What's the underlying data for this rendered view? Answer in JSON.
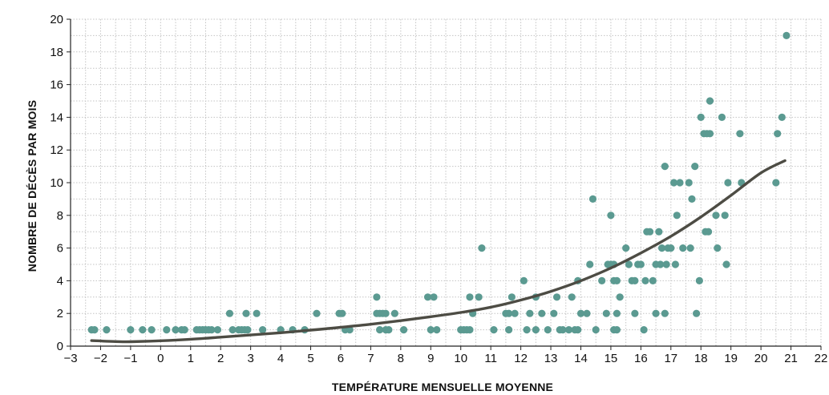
{
  "chart_data": {
    "type": "scatter",
    "title": "",
    "xlabel": "TEMPÉRATURE MENSUELLE MOYENNE",
    "ylabel": "NOMBRE DE DÉCÈS PAR MOIS",
    "xlim": [
      -3,
      22
    ],
    "ylim": [
      0,
      20
    ],
    "x_ticks": [
      -3,
      -2,
      -1,
      0,
      1,
      2,
      3,
      4,
      5,
      6,
      7,
      8,
      9,
      10,
      11,
      12,
      13,
      14,
      15,
      16,
      17,
      18,
      19,
      20,
      21,
      22
    ],
    "y_ticks": [
      0,
      2,
      4,
      6,
      8,
      10,
      12,
      14,
      16,
      18,
      20
    ],
    "x_minor_step": 0.5,
    "y_minor_step": 1,
    "grid": "dotted",
    "colors": {
      "points": "#5b9a91",
      "trend": "#4d4c44",
      "grid": "#c4c4c4",
      "axis": "#222222"
    },
    "trend_curve": {
      "type": "fitted-curve",
      "points": [
        [
          -2.3,
          0.34
        ],
        [
          -1.5,
          0.28
        ],
        [
          -1,
          0.27
        ],
        [
          0,
          0.33
        ],
        [
          1,
          0.42
        ],
        [
          2,
          0.55
        ],
        [
          3,
          0.68
        ],
        [
          4,
          0.82
        ],
        [
          5,
          0.98
        ],
        [
          6,
          1.15
        ],
        [
          7,
          1.34
        ],
        [
          8,
          1.56
        ],
        [
          9,
          1.8
        ],
        [
          10,
          2.06
        ],
        [
          11,
          2.38
        ],
        [
          12,
          2.82
        ],
        [
          13,
          3.35
        ],
        [
          14,
          4.0
        ],
        [
          15,
          4.78
        ],
        [
          16,
          5.7
        ],
        [
          17,
          6.72
        ],
        [
          18,
          7.9
        ],
        [
          19,
          9.22
        ],
        [
          20,
          10.6
        ],
        [
          20.8,
          11.35
        ]
      ]
    },
    "series": [
      {
        "points": [
          [
            -2.3,
            1
          ],
          [
            -2.2,
            1
          ],
          [
            -1.8,
            1
          ],
          [
            -1.0,
            1
          ],
          [
            -0.6,
            1
          ],
          [
            -0.3,
            1
          ],
          [
            0.2,
            1
          ],
          [
            0.5,
            1
          ],
          [
            0.7,
            1
          ],
          [
            0.8,
            1
          ],
          [
            1.2,
            1
          ],
          [
            1.3,
            1
          ],
          [
            1.4,
            1
          ],
          [
            1.5,
            1
          ],
          [
            1.6,
            1
          ],
          [
            1.7,
            1
          ],
          [
            1.9,
            1
          ],
          [
            2.3,
            2
          ],
          [
            2.4,
            1
          ],
          [
            2.6,
            1
          ],
          [
            2.7,
            1
          ],
          [
            2.8,
            1
          ],
          [
            2.85,
            2
          ],
          [
            2.9,
            1
          ],
          [
            3.2,
            2
          ],
          [
            3.4,
            1
          ],
          [
            4.0,
            1
          ],
          [
            4.4,
            1
          ],
          [
            4.8,
            1
          ],
          [
            5.2,
            2
          ],
          [
            5.95,
            2
          ],
          [
            6.05,
            2
          ],
          [
            6.15,
            1
          ],
          [
            6.3,
            1
          ],
          [
            7.2,
            3
          ],
          [
            7.2,
            2
          ],
          [
            7.3,
            1
          ],
          [
            7.3,
            2
          ],
          [
            7.4,
            2
          ],
          [
            7.5,
            1
          ],
          [
            7.5,
            2
          ],
          [
            7.6,
            1
          ],
          [
            7.8,
            2
          ],
          [
            8.1,
            1
          ],
          [
            8.9,
            3
          ],
          [
            9.0,
            1
          ],
          [
            9.1,
            3
          ],
          [
            9.2,
            1
          ],
          [
            10.0,
            1
          ],
          [
            10.1,
            1
          ],
          [
            10.2,
            1
          ],
          [
            10.3,
            1
          ],
          [
            10.3,
            3
          ],
          [
            10.4,
            2
          ],
          [
            10.6,
            3
          ],
          [
            10.7,
            6
          ],
          [
            11.1,
            1
          ],
          [
            11.5,
            2
          ],
          [
            11.6,
            2
          ],
          [
            11.6,
            1
          ],
          [
            11.7,
            3
          ],
          [
            11.8,
            2
          ],
          [
            12.1,
            4
          ],
          [
            12.2,
            1
          ],
          [
            12.3,
            2
          ],
          [
            12.5,
            1
          ],
          [
            12.5,
            3
          ],
          [
            12.7,
            2
          ],
          [
            12.9,
            1
          ],
          [
            13.1,
            2
          ],
          [
            13.2,
            3
          ],
          [
            13.3,
            1
          ],
          [
            13.4,
            1
          ],
          [
            13.6,
            1
          ],
          [
            13.7,
            3
          ],
          [
            13.8,
            1
          ],
          [
            13.9,
            4
          ],
          [
            13.9,
            1
          ],
          [
            14.0,
            2
          ],
          [
            14.2,
            2
          ],
          [
            14.3,
            5
          ],
          [
            14.4,
            9
          ],
          [
            14.5,
            1
          ],
          [
            14.7,
            4
          ],
          [
            14.85,
            2
          ],
          [
            14.9,
            5
          ],
          [
            15.0,
            8
          ],
          [
            15.0,
            5
          ],
          [
            15.1,
            1
          ],
          [
            15.1,
            4
          ],
          [
            15.1,
            5
          ],
          [
            15.2,
            1
          ],
          [
            15.2,
            4
          ],
          [
            15.2,
            2
          ],
          [
            15.3,
            3
          ],
          [
            15.5,
            6
          ],
          [
            15.6,
            5
          ],
          [
            15.7,
            4
          ],
          [
            15.8,
            4
          ],
          [
            15.8,
            2
          ],
          [
            15.9,
            5
          ],
          [
            16.0,
            5
          ],
          [
            16.1,
            1
          ],
          [
            16.15,
            4
          ],
          [
            16.2,
            7
          ],
          [
            16.3,
            7
          ],
          [
            16.4,
            4
          ],
          [
            16.5,
            2
          ],
          [
            16.5,
            5
          ],
          [
            16.6,
            7
          ],
          [
            16.65,
            5
          ],
          [
            16.7,
            6
          ],
          [
            16.8,
            11
          ],
          [
            16.8,
            2
          ],
          [
            16.85,
            5
          ],
          [
            16.9,
            6
          ],
          [
            17.0,
            6
          ],
          [
            17.1,
            10
          ],
          [
            17.15,
            5
          ],
          [
            17.2,
            8
          ],
          [
            17.3,
            10
          ],
          [
            17.4,
            6
          ],
          [
            17.6,
            10
          ],
          [
            17.65,
            6
          ],
          [
            17.7,
            9
          ],
          [
            17.8,
            11
          ],
          [
            17.85,
            2
          ],
          [
            17.95,
            4
          ],
          [
            18.0,
            14
          ],
          [
            18.1,
            13
          ],
          [
            18.15,
            7
          ],
          [
            18.2,
            13
          ],
          [
            18.25,
            7
          ],
          [
            18.3,
            13
          ],
          [
            18.3,
            15
          ],
          [
            18.5,
            8
          ],
          [
            18.55,
            6
          ],
          [
            18.7,
            14
          ],
          [
            18.8,
            8
          ],
          [
            18.85,
            5
          ],
          [
            18.9,
            10
          ],
          [
            19.3,
            13
          ],
          [
            19.35,
            10
          ],
          [
            20.5,
            10
          ],
          [
            20.55,
            13
          ],
          [
            20.7,
            14
          ],
          [
            20.85,
            19
          ]
        ]
      }
    ]
  }
}
